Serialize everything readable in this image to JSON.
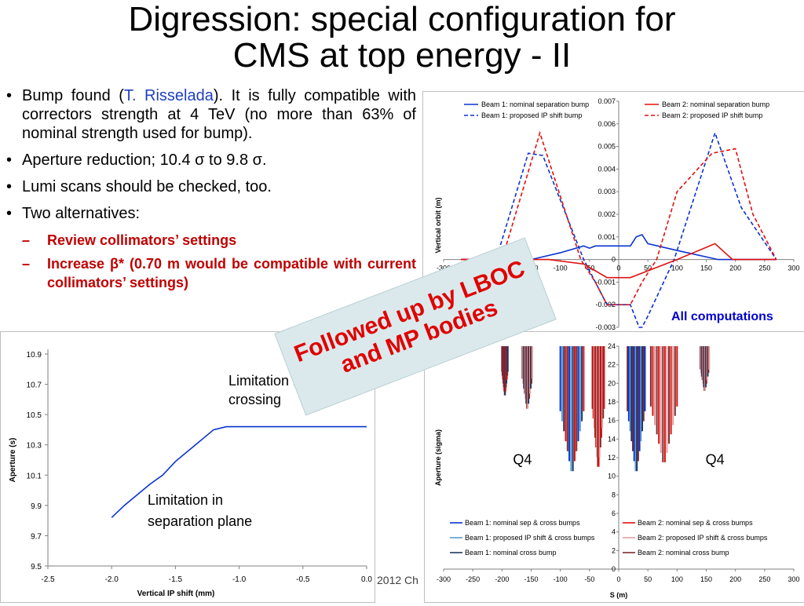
{
  "title": {
    "line1": "Digression: special configuration for",
    "line2": "CMS at top energy - II"
  },
  "bullets": [
    {
      "pre": "Bump found (",
      "author": "T. Risselada",
      "post": "). It is fully compatible with correctors strength at 4 TeV (no more than 63% of nominal strength used for bump)."
    },
    {
      "text": "Aperture reduction; 10.4 σ to 9.8 σ."
    },
    {
      "text": "Lumi scans should be checked, too."
    },
    {
      "text": "Two alternatives:"
    }
  ],
  "subbullets": [
    "Review collimators’ settings",
    "Increase β* (0.70 m would be compatible with current collimators’ settings)"
  ],
  "stamp": {
    "line1": "Followed up by LBOC",
    "line2": "and MP bodies"
  },
  "all_computations": "All computations",
  "footer": "2012 Ch",
  "colors": {
    "beam1": "#0a32d0",
    "beam2": "#e01010",
    "light_b1": "#5b9bd5",
    "light_b2": "#e6a0a0",
    "dark_b1": "#1f3864",
    "dark_b2": "#7b2c2c",
    "accent_red": "#c00000"
  },
  "chart_data": [
    {
      "type": "line",
      "ylabel": "Vertical orbit (m)",
      "xlim": [
        -300,
        300
      ],
      "ylim": [
        -0.003,
        0.007
      ],
      "xticks": [
        "-300",
        "-250",
        "-200",
        "-150",
        "-100",
        "-50",
        "0",
        "50",
        "100",
        "150",
        "200",
        "250",
        "300"
      ],
      "yticks": [
        "-0.003",
        "-0.002",
        "-0.001",
        "0",
        "0.001",
        "0.002",
        "0.003",
        "0.004",
        "0.005",
        "0.006",
        "0.007"
      ],
      "legend": [
        "Beam 1: nominal separation bump",
        "Beam 1: proposed IP shift bump",
        "Beam 2: nominal separation bump",
        "Beam 2: proposed IP shift bump"
      ],
      "series": [
        {
          "name": "Beam 1: nominal separation bump",
          "color": "#0a32d0",
          "dash": false,
          "x": [
            -270,
            -200,
            -150,
            -100,
            -60,
            -50,
            -40,
            -20,
            0,
            20,
            30,
            40,
            50,
            100,
            170,
            220,
            270
          ],
          "y": [
            0,
            0,
            0,
            0.0003,
            0.0006,
            0.0005,
            0.0006,
            0.0006,
            0.0006,
            0.0006,
            0.001,
            0.0011,
            0.0007,
            0.0004,
            0,
            0,
            0
          ]
        },
        {
          "name": "Beam 1: proposed IP shift bump",
          "color": "#0a32d0",
          "dash": true,
          "x": [
            -270,
            -210,
            -155,
            -130,
            -60,
            -20,
            0,
            20,
            35,
            40,
            50,
            95,
            165,
            210,
            270
          ],
          "y": [
            0,
            0,
            0.0047,
            0.0046,
            0,
            -0.002,
            -0.002,
            -0.002,
            -0.003,
            -0.003,
            -0.0025,
            0,
            0.0056,
            0.0023,
            0
          ]
        },
        {
          "name": "Beam 2: nominal separation bump",
          "color": "#e01010",
          "dash": false,
          "x": [
            -270,
            -200,
            -150,
            -120,
            -60,
            -40,
            -20,
            0,
            20,
            40,
            60,
            100,
            165,
            195,
            270
          ],
          "y": [
            0,
            0,
            0,
            0,
            -0.0002,
            -0.0005,
            -0.0008,
            -0.0008,
            -0.0008,
            -0.0006,
            -0.0004,
            0,
            0.0007,
            0,
            0
          ]
        },
        {
          "name": "Beam 2: proposed IP shift bump",
          "color": "#e01010",
          "dash": true,
          "x": [
            -270,
            -200,
            -135,
            -65,
            -40,
            -20,
            0,
            20,
            40,
            65,
            100,
            160,
            200,
            230,
            270
          ],
          "y": [
            0,
            0,
            0.0056,
            0,
            -0.001,
            -0.002,
            -0.002,
            -0.002,
            -0.001,
            0,
            0.003,
            0.0047,
            0.0049,
            0.002,
            0
          ]
        }
      ]
    },
    {
      "type": "line",
      "xlabel": "Vertical IP shift (mm)",
      "ylabel": "Aperture (s)",
      "xlim": [
        -2.5,
        0.0
      ],
      "ylim": [
        9.5,
        10.9
      ],
      "xticks": [
        "-2.5",
        "-2.0",
        "-1.5",
        "-1.0",
        "-0.5",
        "0.0"
      ],
      "yticks": [
        "9.5",
        "9.7",
        "9.9",
        "10.1",
        "10.3",
        "10.5",
        "10.7",
        "10.9"
      ],
      "annotations": [
        {
          "line1": "Limitation in",
          "line2": "crossing"
        },
        {
          "line1": "Limitation in",
          "line2": "separation  plane"
        }
      ],
      "series": [
        {
          "color": "#0a32d0",
          "x": [
            -2.0,
            -1.9,
            -1.7,
            -1.6,
            -1.5,
            -1.2,
            -1.1,
            -0.5,
            0.0
          ],
          "y": [
            9.82,
            9.9,
            10.04,
            10.1,
            10.19,
            10.4,
            10.42,
            10.42,
            10.42
          ]
        }
      ]
    },
    {
      "type": "line",
      "xlabel": "S (m)",
      "ylabel": "Aperture (sigma)",
      "xlim": [
        -300,
        300
      ],
      "ylim": [
        0,
        24
      ],
      "xticks": [
        "-300",
        "-250",
        "-200",
        "-150",
        "-100",
        "-50",
        "0",
        "50",
        "100",
        "150",
        "200",
        "250",
        "300"
      ],
      "yticks": [
        "0",
        "2",
        "4",
        "6",
        "8",
        "10",
        "12",
        "14",
        "16",
        "18",
        "20",
        "22",
        "24"
      ],
      "labels": [
        "Q4",
        "Q4"
      ],
      "legend": [
        "Beam 1: nominal sep & cross bumps",
        "Beam 1: proposed IP shift & cross bumps",
        "Beam 1: nominal cross bump",
        "Beam 2: nominal sep & cross bumps",
        "Beam 2: proposed IP shift & cross bumps",
        "Beam 2: nominal cross bump"
      ]
    }
  ]
}
